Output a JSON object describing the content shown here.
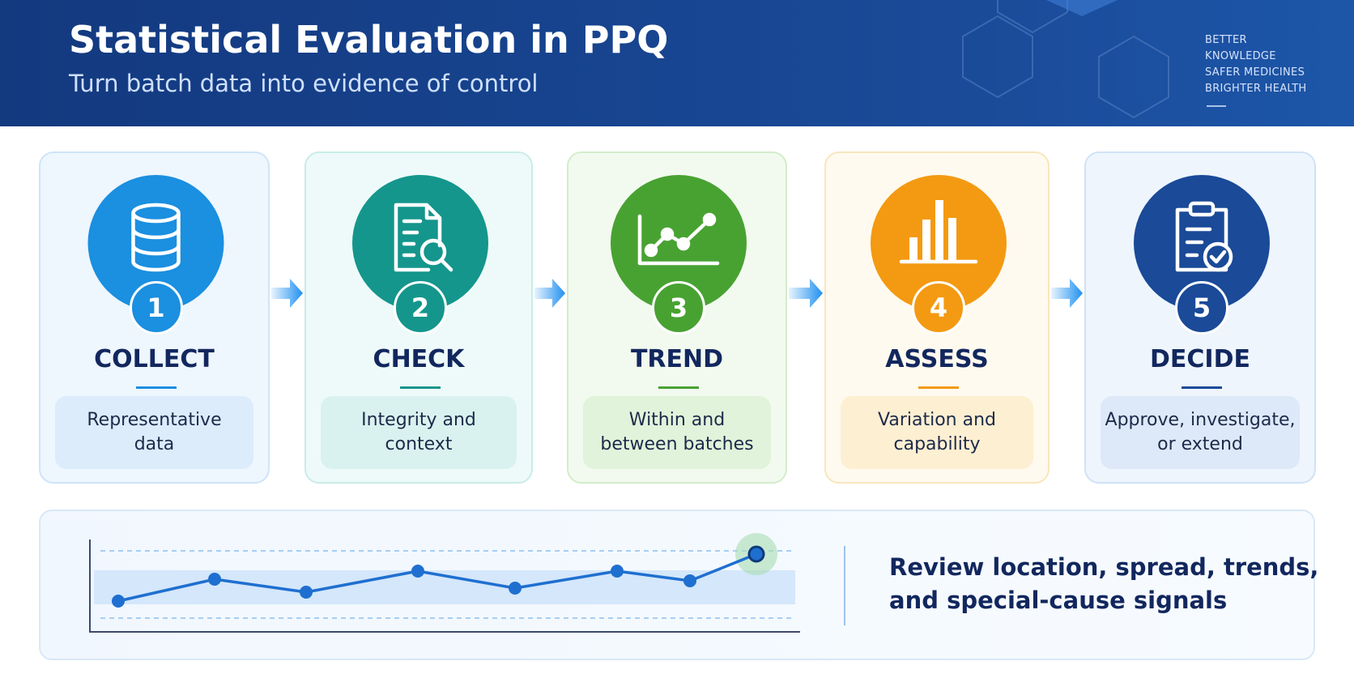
{
  "header": {
    "title": "Statistical Evaluation in PPQ",
    "subtitle": "Turn batch data into evidence of control",
    "tagline": [
      "BETTER",
      "KNOWLEDGE",
      "SAFER MEDICINES",
      "BRIGHTER HEALTH"
    ]
  },
  "steps": [
    {
      "number": "1",
      "title": "COLLECT",
      "description": [
        "Representative",
        "data"
      ]
    },
    {
      "number": "2",
      "title": "CHECK",
      "description": [
        "Integrity and",
        "context"
      ]
    },
    {
      "number": "3",
      "title": "TREND",
      "description": [
        "Within and",
        "between batches"
      ]
    },
    {
      "number": "4",
      "title": "ASSESS",
      "description": [
        "Variation and",
        "capability"
      ]
    },
    {
      "number": "5",
      "title": "DECIDE",
      "description": [
        "Approve, investigate,",
        "or extend"
      ]
    }
  ],
  "summary": [
    "Review location, spread, trends,",
    "and special-cause signals"
  ]
}
